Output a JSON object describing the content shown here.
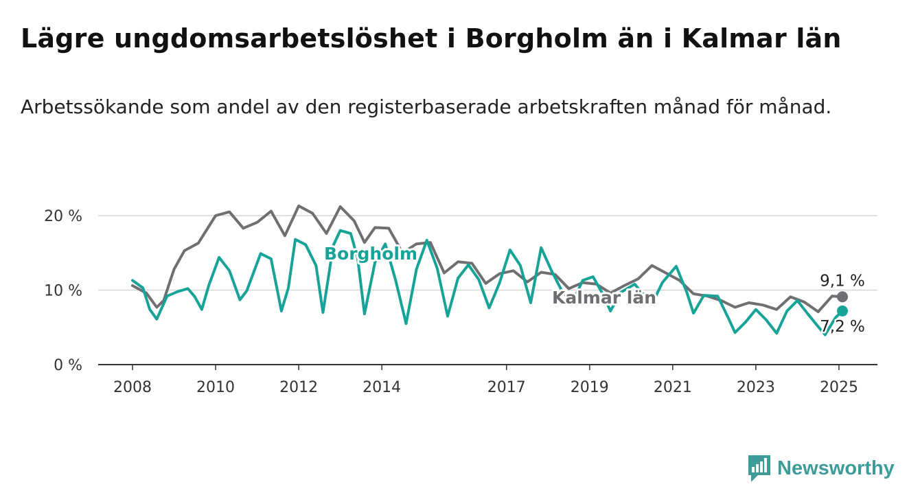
{
  "title": "Lägre ungdomsarbetslöshet i Borgholm än i Kalmar län",
  "subtitle": "Arbetssökande som andel av den registerbaserade arbetskraften månad för månad.",
  "brand": {
    "name": "Newsworthy",
    "color": "#3d9c97",
    "logo_icon": "bar-chart-speech-bubble-icon"
  },
  "chart_data": {
    "type": "line",
    "x_start": "2008-01",
    "x_end": "2025-02",
    "x_ticks": [
      "2008",
      "2010",
      "2012",
      "2014",
      "2017",
      "2019",
      "2021",
      "2023",
      "2025"
    ],
    "y_ticks": [
      "0 %",
      "10 %",
      "20 %"
    ],
    "ylim": [
      0,
      20
    ],
    "grid": true,
    "series": [
      {
        "name": "Kalmar län",
        "color": "#6e6e73",
        "end_label": "9,1 %",
        "anchors": [
          [
            "2008-01",
            10.6
          ],
          [
            "2008-05",
            9.6
          ],
          [
            "2008-08",
            7.7
          ],
          [
            "2008-10",
            8.6
          ],
          [
            "2009-01",
            12.8
          ],
          [
            "2009-04",
            15.3
          ],
          [
            "2009-08",
            16.3
          ],
          [
            "2010-01",
            20.0
          ],
          [
            "2010-05",
            20.5
          ],
          [
            "2010-09",
            18.3
          ],
          [
            "2011-01",
            19.1
          ],
          [
            "2011-05",
            20.6
          ],
          [
            "2011-09",
            17.3
          ],
          [
            "2012-01",
            21.3
          ],
          [
            "2012-05",
            20.3
          ],
          [
            "2012-09",
            17.6
          ],
          [
            "2013-01",
            21.2
          ],
          [
            "2013-05",
            19.3
          ],
          [
            "2013-08",
            16.4
          ],
          [
            "2013-11",
            18.4
          ],
          [
            "2014-03",
            18.3
          ],
          [
            "2014-07",
            15.0
          ],
          [
            "2014-11",
            16.2
          ],
          [
            "2015-03",
            16.4
          ],
          [
            "2015-07",
            12.3
          ],
          [
            "2015-11",
            13.8
          ],
          [
            "2016-03",
            13.6
          ],
          [
            "2016-07",
            10.9
          ],
          [
            "2016-11",
            12.2
          ],
          [
            "2017-03",
            12.6
          ],
          [
            "2017-07",
            11.1
          ],
          [
            "2017-11",
            12.4
          ],
          [
            "2018-03",
            12.1
          ],
          [
            "2018-07",
            10.2
          ],
          [
            "2018-11",
            11.0
          ],
          [
            "2019-03",
            10.8
          ],
          [
            "2019-07",
            9.6
          ],
          [
            "2019-11",
            10.6
          ],
          [
            "2020-03",
            11.5
          ],
          [
            "2020-07",
            13.3
          ],
          [
            "2020-11",
            12.3
          ],
          [
            "2021-03",
            11.3
          ],
          [
            "2021-07",
            9.5
          ],
          [
            "2021-11",
            9.2
          ],
          [
            "2022-03",
            8.6
          ],
          [
            "2022-07",
            7.7
          ],
          [
            "2022-11",
            8.3
          ],
          [
            "2023-03",
            8.0
          ],
          [
            "2023-07",
            7.4
          ],
          [
            "2023-11",
            9.1
          ],
          [
            "2024-03",
            8.4
          ],
          [
            "2024-07",
            7.1
          ],
          [
            "2024-11",
            9.2
          ],
          [
            "2025-02",
            9.1
          ]
        ]
      },
      {
        "name": "Borgholm",
        "color": "#17a398",
        "end_label": "7,2 %",
        "anchors": [
          [
            "2008-01",
            11.3
          ],
          [
            "2008-04",
            10.3
          ],
          [
            "2008-06",
            7.4
          ],
          [
            "2008-08",
            6.1
          ],
          [
            "2008-11",
            9.2
          ],
          [
            "2009-02",
            9.8
          ],
          [
            "2009-05",
            10.2
          ],
          [
            "2009-07",
            9.1
          ],
          [
            "2009-09",
            7.4
          ],
          [
            "2009-11",
            10.6
          ],
          [
            "2010-02",
            14.4
          ],
          [
            "2010-05",
            12.6
          ],
          [
            "2010-08",
            8.7
          ],
          [
            "2010-10",
            9.9
          ],
          [
            "2011-02",
            14.9
          ],
          [
            "2011-05",
            14.2
          ],
          [
            "2011-08",
            7.2
          ],
          [
            "2011-10",
            10.3
          ],
          [
            "2011-12",
            16.8
          ],
          [
            "2012-03",
            16.1
          ],
          [
            "2012-06",
            13.3
          ],
          [
            "2012-08",
            7.0
          ],
          [
            "2012-11",
            16.0
          ],
          [
            "2013-01",
            18.0
          ],
          [
            "2013-04",
            17.6
          ],
          [
            "2013-06",
            14.3
          ],
          [
            "2013-08",
            6.8
          ],
          [
            "2013-11",
            13.7
          ],
          [
            "2014-02",
            16.2
          ],
          [
            "2014-05",
            11.3
          ],
          [
            "2014-08",
            5.5
          ],
          [
            "2014-11",
            12.8
          ],
          [
            "2015-02",
            16.7
          ],
          [
            "2015-05",
            12.9
          ],
          [
            "2015-08",
            6.5
          ],
          [
            "2015-11",
            11.6
          ],
          [
            "2016-02",
            13.4
          ],
          [
            "2016-05",
            11.4
          ],
          [
            "2016-08",
            7.6
          ],
          [
            "2016-11",
            11.0
          ],
          [
            "2017-02",
            15.4
          ],
          [
            "2017-05",
            13.3
          ],
          [
            "2017-08",
            8.3
          ],
          [
            "2017-11",
            15.7
          ],
          [
            "2018-02",
            12.6
          ],
          [
            "2018-05",
            9.9
          ],
          [
            "2018-08",
            8.3
          ],
          [
            "2018-11",
            11.3
          ],
          [
            "2019-02",
            11.8
          ],
          [
            "2019-05",
            9.3
          ],
          [
            "2019-07",
            7.2
          ],
          [
            "2019-10",
            9.7
          ],
          [
            "2020-02",
            10.8
          ],
          [
            "2020-05",
            9.2
          ],
          [
            "2020-07",
            8.1
          ],
          [
            "2020-10",
            11.0
          ],
          [
            "2021-02",
            13.2
          ],
          [
            "2021-05",
            9.8
          ],
          [
            "2021-07",
            6.9
          ],
          [
            "2021-10",
            9.3
          ],
          [
            "2022-02",
            9.2
          ],
          [
            "2022-05",
            6.3
          ],
          [
            "2022-07",
            4.3
          ],
          [
            "2022-10",
            5.7
          ],
          [
            "2023-01",
            7.4
          ],
          [
            "2023-04",
            6.0
          ],
          [
            "2023-07",
            4.2
          ],
          [
            "2023-10",
            7.2
          ],
          [
            "2024-01",
            8.6
          ],
          [
            "2024-04",
            6.8
          ],
          [
            "2024-07",
            5.1
          ],
          [
            "2024-09",
            4.0
          ],
          [
            "2024-12",
            6.3
          ],
          [
            "2025-02",
            7.2
          ]
        ]
      }
    ]
  }
}
